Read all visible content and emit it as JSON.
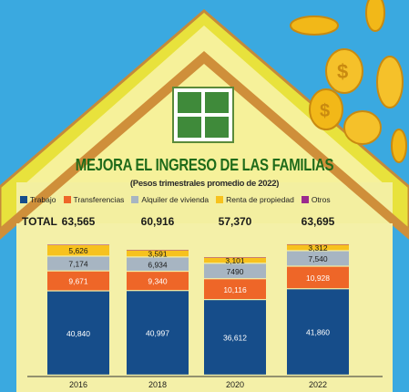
{
  "chart_data": {
    "type": "bar",
    "stacked": true,
    "title": "MEJORA EL INGRESO DE LAS FAMILIAS",
    "subtitle": "(Pesos trimestrales promedio de 2022)",
    "totals_label": "TOTAL",
    "categories": [
      "2016",
      "2018",
      "2020",
      "2022"
    ],
    "totals": [
      "63,565",
      "60,916",
      "57,370",
      "63,695"
    ],
    "series": [
      {
        "name": "Trabajo",
        "color": "#164d8a",
        "values": [
          40840,
          40997,
          36612,
          41860
        ],
        "labels": [
          "40,840",
          "40,997",
          "36,612",
          "41,860"
        ]
      },
      {
        "name": "Transferencias",
        "color": "#ee6628",
        "values": [
          9671,
          9340,
          10116,
          10928
        ],
        "labels": [
          "9,671",
          "9,340",
          "10,116",
          "10,928"
        ]
      },
      {
        "name": "Alquiler de vivienda",
        "color": "#a7b5c2",
        "values": [
          7174,
          6934,
          7490,
          7540
        ],
        "labels": [
          "7,174",
          "6,934",
          "7490",
          "7,540"
        ]
      },
      {
        "name": "Renta de propiedad",
        "color": "#f7c21e",
        "values": [
          5626,
          3591,
          3101,
          3312
        ],
        "labels": [
          "5,626",
          "3,591",
          "3,101",
          "3,312"
        ]
      },
      {
        "name": "Otros",
        "color": "#9b2b8e",
        "values": [
          254,
          54,
          51,
          55
        ],
        "labels": [
          "",
          "",
          "",
          ""
        ]
      }
    ],
    "ylim": [
      0,
      65000
    ],
    "legend_position": "top"
  }
}
